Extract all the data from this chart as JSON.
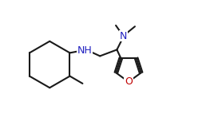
{
  "bg_color": "#ffffff",
  "line_color": "#1a1a1a",
  "atom_colors": {
    "N": "#2020c0",
    "O": "#c00000",
    "H": "#1a1a1a",
    "C": "#1a1a1a"
  },
  "font_size_atom": 9,
  "line_width": 1.5,
  "figsize": [
    2.73,
    1.62
  ],
  "dpi": 100
}
